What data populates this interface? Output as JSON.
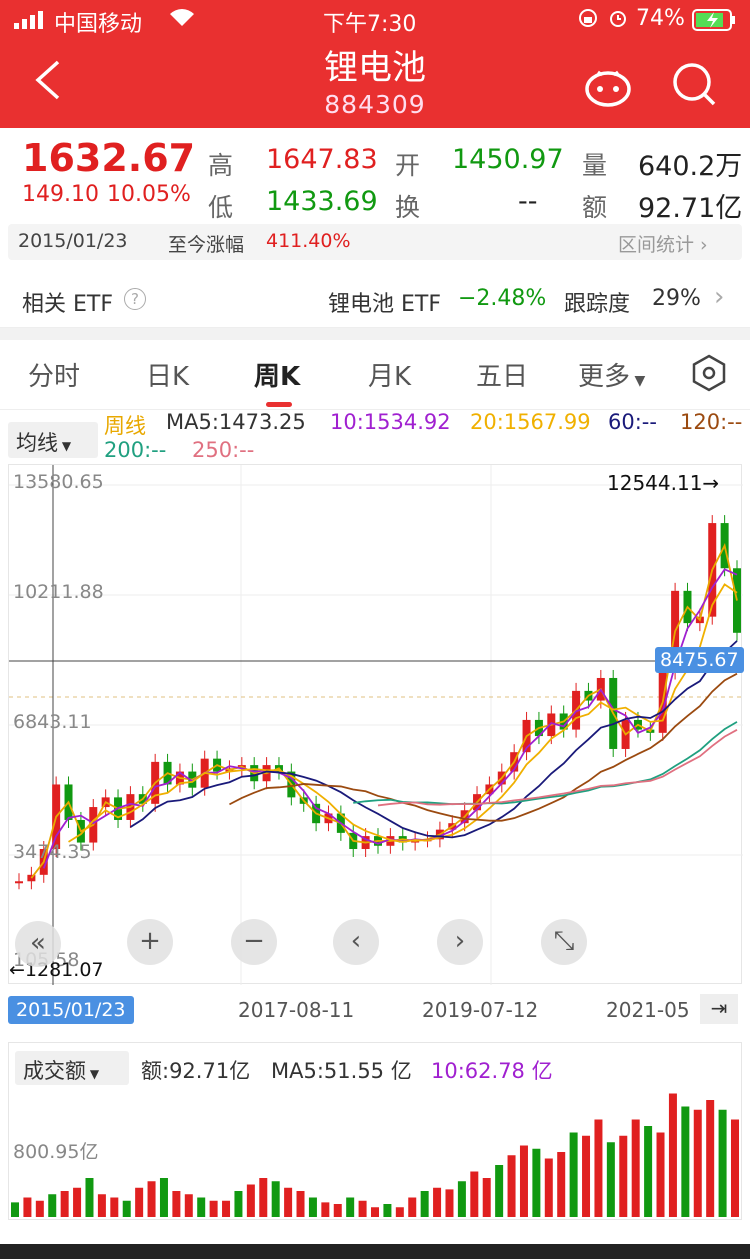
{
  "status": {
    "carrier": "中国移动",
    "time": "下午7:30",
    "battery": "74%"
  },
  "header": {
    "back_icon": "chevron-left-icon",
    "title": "锂电池",
    "code": "884309",
    "robot_icon": "robot-icon",
    "search_icon": "search-icon"
  },
  "quote": {
    "price": "1632.67",
    "change": "149.10",
    "change_pct": "10.05%",
    "high_label": "高",
    "high": "1647.83",
    "open_label": "开",
    "open": "1450.97",
    "vol_label": "量",
    "vol": "640.2万",
    "low_label": "低",
    "low": "1433.69",
    "turn_label": "换",
    "turn": "--",
    "amt_label": "额",
    "amt": "92.71亿"
  },
  "period": {
    "date": "2015/01/23",
    "label": "至今涨幅",
    "value": "411.40%",
    "stats": "区间统计"
  },
  "etf": {
    "label": "相关 ETF",
    "name": "锂电池 ETF",
    "pct": "−2.48%",
    "track_label": "跟踪度",
    "track": "29%"
  },
  "tabs": [
    "分时",
    "日K",
    "周K",
    "月K",
    "五日",
    "更多"
  ],
  "ma": {
    "selector": "均线",
    "type": "周线",
    "ma5": "MA5:1473.25",
    "ma10": "10:1534.92",
    "ma20": "20:1567.99",
    "ma60": "60:--",
    "ma120": "120:--",
    "ma200": "200:--",
    "ma250": "250:--"
  },
  "colors": {
    "red": "#e02020",
    "green": "#119911",
    "ma5": "#e8a800",
    "ma10": "#a020d0",
    "ma20": "#f0b000",
    "ma60": "#1a1a7a",
    "ma120": "#9b4a10",
    "ma200": "#20a080",
    "ma250": "#e07080"
  },
  "chart_data": [
    {
      "type": "line",
      "price_axis": [
        "13580.65",
        "10211.88",
        "6843.11",
        "3474.35",
        "105.58"
      ],
      "x_labels": [
        "2015/01/23",
        "2017-08-11",
        "2019-07-12",
        "2021-05"
      ],
      "max_label": "12544.11→",
      "min_label": "←1281.07",
      "crosshair_value": "8475.67",
      "series": [
        {
          "name": "K",
          "values": [
            1300,
            1500,
            2300,
            4300,
            3200,
            2500,
            3600,
            3900,
            3200,
            4000,
            3700,
            5000,
            4300,
            4700,
            4200,
            5100,
            4700,
            4800,
            4900,
            4400,
            4900,
            4700,
            3900,
            3700,
            3100,
            3400,
            2800,
            2300,
            2700,
            2400,
            2700,
            2500,
            2600,
            2600,
            2900,
            3100,
            3500,
            4000,
            4300,
            4700,
            5300,
            6300,
            5800,
            6500,
            6000,
            7200,
            6900,
            7600,
            5400,
            6300,
            6000,
            5900,
            7800,
            10300,
            9300,
            9500,
            12400,
            11000,
            9000
          ]
        }
      ]
    }
  ],
  "controls": [
    "«",
    "+",
    "−",
    "‹",
    "›",
    "⤡"
  ],
  "volume": {
    "selector": "成交额",
    "amt": "额:92.71亿",
    "ma5": "MA5:51.55 亿",
    "ma10": "10:62.78 亿",
    "axis": "800.95亿",
    "chart_data": {
      "type": "bar",
      "values": [
        45,
        60,
        50,
        70,
        80,
        90,
        120,
        70,
        60,
        50,
        90,
        110,
        120,
        80,
        70,
        60,
        50,
        50,
        80,
        100,
        120,
        110,
        90,
        80,
        60,
        45,
        40,
        60,
        50,
        30,
        40,
        30,
        60,
        80,
        90,
        85,
        110,
        140,
        120,
        160,
        190,
        220,
        210,
        180,
        200,
        260,
        250,
        300,
        230,
        250,
        300,
        280,
        260,
        380,
        340,
        330,
        360,
        330,
        300
      ]
    }
  }
}
